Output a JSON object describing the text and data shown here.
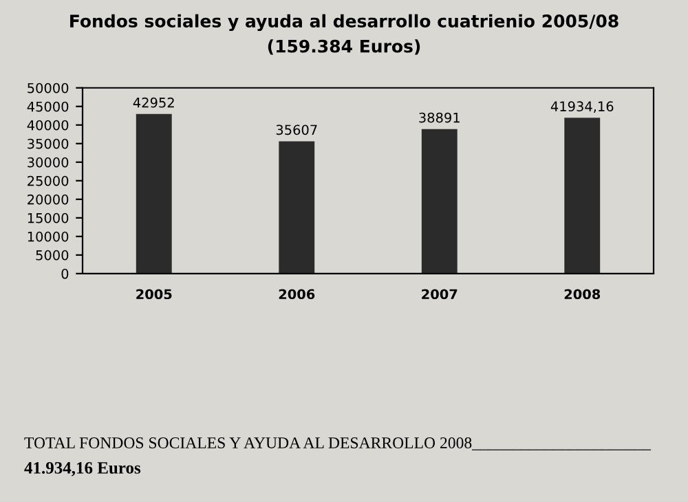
{
  "chart_data": {
    "type": "bar",
    "title": "Fondos sociales y ayuda al desarrollo cuatrienio 2005/08",
    "subtitle": "(159.384 Euros)",
    "categories": [
      "2005",
      "2006",
      "2007",
      "2008"
    ],
    "values": [
      42952,
      35607,
      38891,
      41934.16
    ],
    "value_labels": [
      "42952",
      "35607",
      "38891",
      "41934,16"
    ],
    "color": "#2b2b2b",
    "ylim": [
      0,
      50000
    ],
    "yticks": [
      0,
      5000,
      10000,
      15000,
      20000,
      25000,
      30000,
      35000,
      40000,
      45000,
      50000
    ],
    "grid": false,
    "annotations": [
      "TOTAL FONDOS SOCIALES Y AYUDA AL DESARROLLO 2008______________________",
      "41.934,16 Euros"
    ]
  }
}
